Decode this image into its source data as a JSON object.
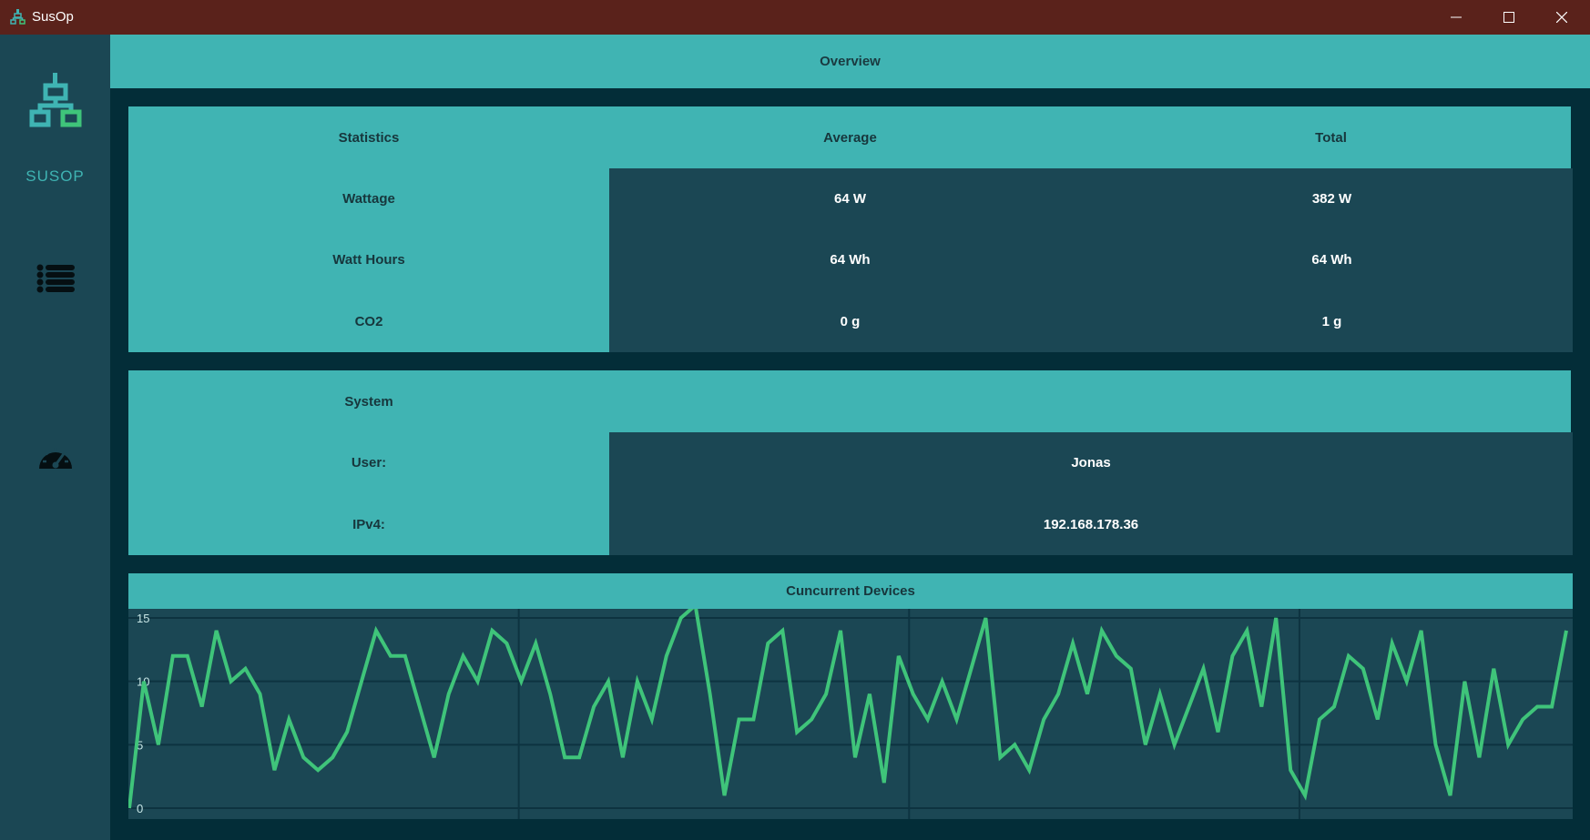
{
  "window": {
    "title": "SusOp",
    "controls": [
      "minimize-icon",
      "maximize-icon",
      "close-icon"
    ]
  },
  "sidebar": {
    "logo_text": "SUSOP",
    "items": [
      {
        "icon": "list-icon"
      },
      {
        "icon": "speedometer-icon"
      }
    ]
  },
  "main": {
    "header": "Overview",
    "statistics": {
      "columns": [
        "Statistics",
        "Average",
        "Total"
      ],
      "rows": [
        {
          "label": "Wattage",
          "average": "64 W",
          "total": "382 W"
        },
        {
          "label": "Watt Hours",
          "average": "64 Wh",
          "total": "64 Wh"
        },
        {
          "label": "CO2",
          "average": "0 g",
          "total": "1 g"
        }
      ]
    },
    "system": {
      "title": "System",
      "rows": [
        {
          "label": "User:",
          "value": "Jonas"
        },
        {
          "label": "IPv4:",
          "value": "192.168.178.36"
        }
      ]
    }
  },
  "colors": {
    "titlebar": "#5a221b",
    "sidebar": "#1b4754",
    "background": "#032d38",
    "teal": "#40b4b3",
    "line": "#3fc47a"
  },
  "chart_data": {
    "type": "line",
    "title": "Cuncurrent Devices",
    "ylim": [
      0,
      15
    ],
    "yticks": [
      "0",
      "5",
      "10",
      "15"
    ],
    "grid": true,
    "series": [
      {
        "values": [
          0,
          10,
          5,
          12,
          12,
          8,
          14,
          10,
          11,
          9,
          3,
          7,
          4,
          3,
          4,
          6,
          10,
          14,
          12,
          12,
          8,
          4,
          9,
          12,
          10,
          14,
          13,
          10,
          13,
          9,
          4,
          4,
          8,
          10,
          4,
          10,
          7,
          12,
          15,
          16,
          9,
          1,
          7,
          7,
          13,
          14,
          6,
          7,
          9,
          14,
          4,
          9,
          2,
          12,
          9,
          7,
          10,
          7,
          11,
          15,
          4,
          5,
          3,
          7,
          9,
          13,
          9,
          14,
          12,
          11,
          5,
          9,
          5,
          8,
          11,
          6,
          12,
          14,
          8,
          15,
          3,
          1,
          7,
          8,
          12,
          11,
          7,
          13,
          10,
          14,
          5,
          1,
          10,
          4,
          11,
          5,
          7,
          8,
          8,
          14
        ]
      }
    ]
  }
}
